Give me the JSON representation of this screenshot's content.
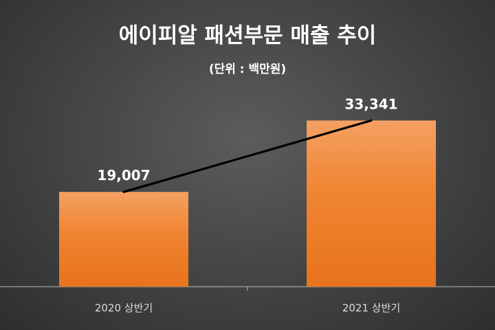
{
  "chart_data": {
    "type": "bar",
    "title": "에이피알 패션부문 매출 추이",
    "subtitle": "(단위 : 백만원)",
    "categories": [
      "2020 상반기",
      "2021 상반기"
    ],
    "values": [
      19007,
      33341
    ],
    "value_labels": [
      "19,007",
      "33,341"
    ],
    "ylim": [
      0,
      40000
    ],
    "grid": false,
    "legend": "none",
    "trend_line": true,
    "colors": {
      "bar_top": "#f4a062",
      "bar_bottom": "#e8731c",
      "trend_line": "#000000",
      "text": "#ffffff",
      "axis_label": "#dcdcdc"
    }
  }
}
